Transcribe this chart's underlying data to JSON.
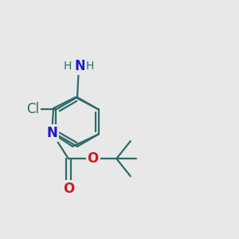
{
  "bg_color": "#e8e8e8",
  "bond_color": "#2d6b6b",
  "bond_width": 1.6,
  "atom_colors": {
    "N": "#1a1acc",
    "O": "#cc1a1a",
    "Cl": "#2d6b6b",
    "NH2_N": "#1a1acc",
    "NH2_H": "#2d6b6b"
  },
  "font_size": 11
}
